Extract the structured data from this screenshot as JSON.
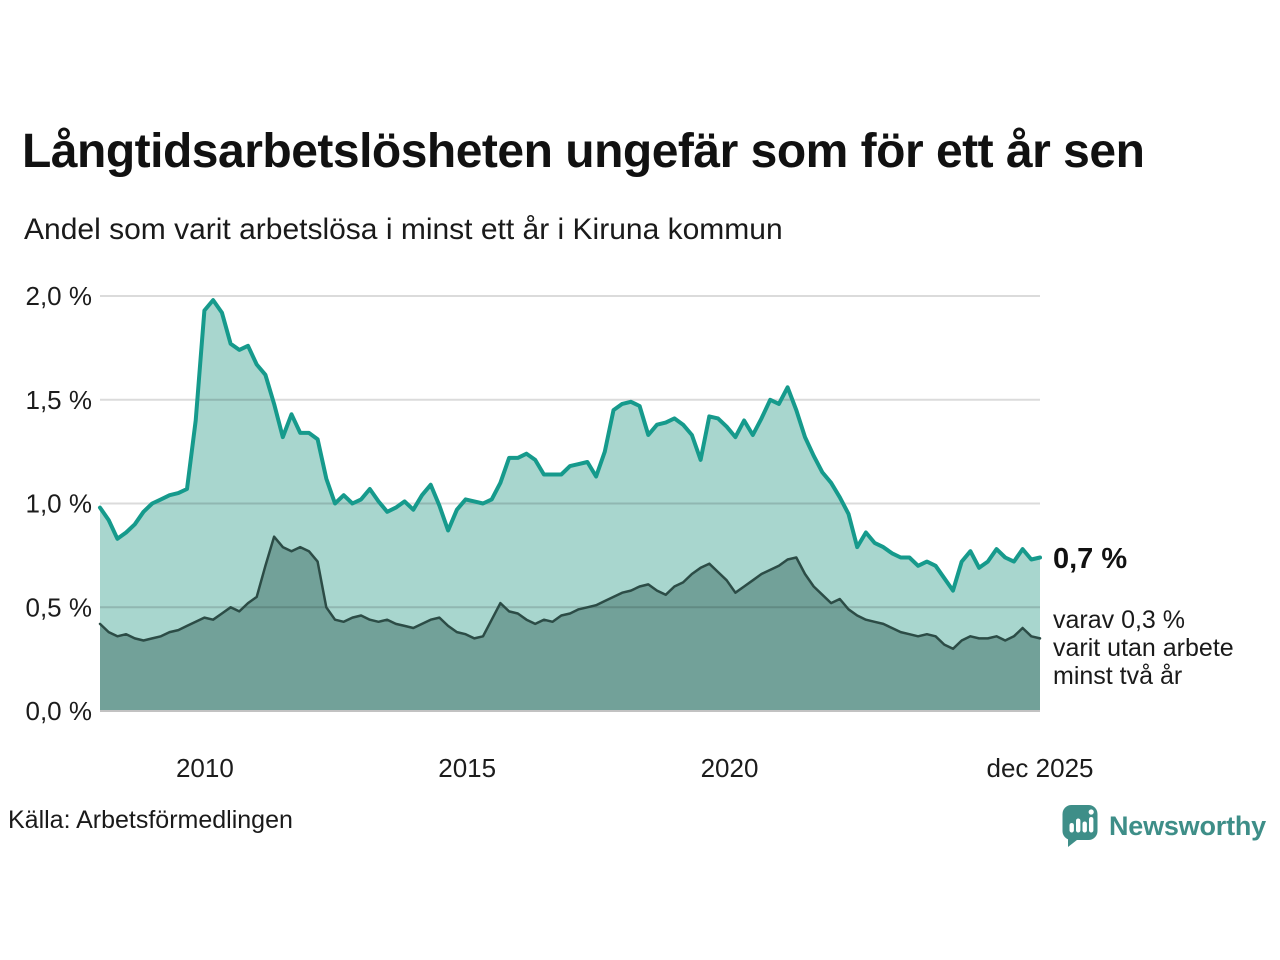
{
  "header": {
    "title": "Långtidsarbetslösheten ungefär som för ett år sen",
    "subtitle": "Andel som varit arbetslösa i minst ett år i Kiruna kommun"
  },
  "chart_data": {
    "type": "area",
    "title": "Långtidsarbetslösheten ungefär som för ett år sen",
    "subtitle": "Andel som varit arbetslösa i minst ett år i Kiruna kommun",
    "xlabel": "",
    "ylabel": "",
    "x_start": 2008,
    "x_end": 2025.92,
    "ylim": [
      0,
      2.0
    ],
    "grid": "horizontal",
    "y_ticks": [
      {
        "value": 0.0,
        "label": "0,0 %"
      },
      {
        "value": 0.5,
        "label": "0,5 %"
      },
      {
        "value": 1.0,
        "label": "1,0 %"
      },
      {
        "value": 1.5,
        "label": "1,5 %"
      },
      {
        "value": 2.0,
        "label": "2,0 %"
      }
    ],
    "x_ticks": [
      {
        "value": 2010,
        "label": "2010"
      },
      {
        "value": 2015,
        "label": "2015"
      },
      {
        "value": 2020,
        "label": "2020"
      },
      {
        "value": 2025.92,
        "label": "dec 2025"
      }
    ],
    "series": [
      {
        "name": "Andel som varit arbetslösa i minst ett år",
        "line_color": "#169a8c",
        "fill_color": "#a8d6ce",
        "line_width": 4,
        "values": [
          0.98,
          0.92,
          0.83,
          0.86,
          0.9,
          0.96,
          1.0,
          1.02,
          1.04,
          1.05,
          1.07,
          1.4,
          1.93,
          1.98,
          1.92,
          1.77,
          1.74,
          1.76,
          1.67,
          1.62,
          1.48,
          1.32,
          1.43,
          1.34,
          1.34,
          1.31,
          1.12,
          1.0,
          1.04,
          1.0,
          1.02,
          1.07,
          1.01,
          0.96,
          0.98,
          1.01,
          0.97,
          1.04,
          1.09,
          0.99,
          0.87,
          0.97,
          1.02,
          1.01,
          1.0,
          1.02,
          1.1,
          1.22,
          1.22,
          1.24,
          1.21,
          1.14,
          1.14,
          1.14,
          1.18,
          1.19,
          1.2,
          1.13,
          1.25,
          1.45,
          1.48,
          1.49,
          1.47,
          1.33,
          1.38,
          1.39,
          1.41,
          1.38,
          1.33,
          1.21,
          1.42,
          1.41,
          1.37,
          1.32,
          1.4,
          1.33,
          1.41,
          1.5,
          1.48,
          1.56,
          1.45,
          1.32,
          1.23,
          1.15,
          1.1,
          1.03,
          0.95,
          0.79,
          0.86,
          0.81,
          0.79,
          0.76,
          0.74,
          0.74,
          0.7,
          0.72,
          0.7,
          0.64,
          0.58,
          0.72,
          0.77,
          0.69,
          0.72,
          0.78,
          0.74,
          0.72,
          0.78,
          0.73,
          0.74
        ]
      },
      {
        "name": "Varav utan arbete minst två år",
        "line_color": "#2c4c46",
        "fill_color": "#72a199",
        "line_width": 2.5,
        "values": [
          0.42,
          0.38,
          0.36,
          0.37,
          0.35,
          0.34,
          0.35,
          0.36,
          0.38,
          0.39,
          0.41,
          0.43,
          0.45,
          0.44,
          0.47,
          0.5,
          0.48,
          0.52,
          0.55,
          0.7,
          0.84,
          0.79,
          0.77,
          0.79,
          0.77,
          0.72,
          0.5,
          0.44,
          0.43,
          0.45,
          0.46,
          0.44,
          0.43,
          0.44,
          0.42,
          0.41,
          0.4,
          0.42,
          0.44,
          0.45,
          0.41,
          0.38,
          0.37,
          0.35,
          0.36,
          0.44,
          0.52,
          0.48,
          0.47,
          0.44,
          0.42,
          0.44,
          0.43,
          0.46,
          0.47,
          0.49,
          0.5,
          0.51,
          0.53,
          0.55,
          0.57,
          0.58,
          0.6,
          0.61,
          0.58,
          0.56,
          0.6,
          0.62,
          0.66,
          0.69,
          0.71,
          0.67,
          0.63,
          0.57,
          0.6,
          0.63,
          0.66,
          0.68,
          0.7,
          0.73,
          0.74,
          0.66,
          0.6,
          0.56,
          0.52,
          0.54,
          0.49,
          0.46,
          0.44,
          0.43,
          0.42,
          0.4,
          0.38,
          0.37,
          0.36,
          0.37,
          0.36,
          0.32,
          0.3,
          0.34,
          0.36,
          0.35,
          0.35,
          0.36,
          0.34,
          0.36,
          0.4,
          0.36,
          0.35
        ]
      }
    ],
    "annotation": {
      "value": "0,7 %",
      "line1": "varav 0,3 %",
      "line2": "varit utan arbete",
      "line3": "minst två år"
    }
  },
  "footer": {
    "source": "Källa: Arbetsförmedlingen",
    "brand": "Newsworthy"
  },
  "colors": {
    "background": "#ffffff",
    "title_text": "#111111",
    "body_text": "#1a1a1a",
    "gridline": "#dcdcdc",
    "axis_baseline": "#c2c2c2",
    "series1_line": "#169a8c",
    "series1_fill": "#a8d6ce",
    "series2_line": "#2c4c46",
    "series2_fill": "#72a199",
    "brand_teal": "#3e8e88"
  }
}
